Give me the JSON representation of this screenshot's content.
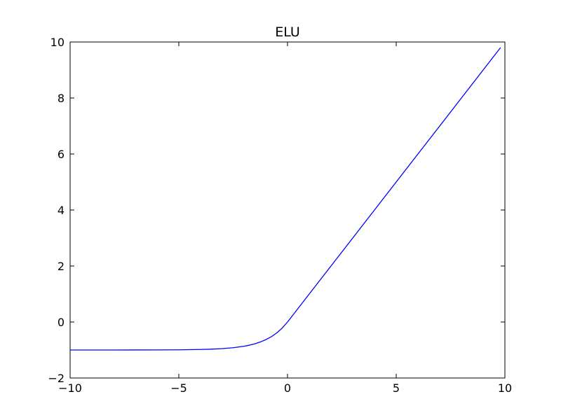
{
  "chart_data": {
    "type": "line",
    "title": "ELU",
    "xlabel": "",
    "ylabel": "",
    "xlim": [
      -10,
      10
    ],
    "ylim": [
      -2,
      10
    ],
    "x_ticks": [
      -10,
      -5,
      0,
      5,
      10
    ],
    "y_ticks": [
      -2,
      0,
      2,
      4,
      6,
      8,
      10
    ],
    "x_tick_labels": [
      "−10",
      "−5",
      "0",
      "5",
      "10"
    ],
    "y_tick_labels": [
      "−2",
      "0",
      "2",
      "4",
      "6",
      "8",
      "10"
    ],
    "grid": false,
    "legend": "none",
    "line_color": "#0000ff",
    "series": [
      {
        "x": [
          -10,
          -9,
          -8,
          -7,
          -6,
          -5,
          -4,
          -3.5,
          -3,
          -2.5,
          -2,
          -1.75,
          -1.5,
          -1.25,
          -1,
          -0.75,
          -0.5,
          -0.25,
          0,
          1,
          2,
          4,
          6,
          8,
          9.8
        ],
        "y": [
          -1.0,
          -0.9999,
          -0.9997,
          -0.9991,
          -0.9975,
          -0.9933,
          -0.9817,
          -0.9698,
          -0.9502,
          -0.9179,
          -0.8647,
          -0.8262,
          -0.7769,
          -0.7135,
          -0.6321,
          -0.5276,
          -0.3935,
          -0.2212,
          0,
          1,
          2,
          4,
          6,
          8,
          9.8
        ]
      }
    ]
  }
}
